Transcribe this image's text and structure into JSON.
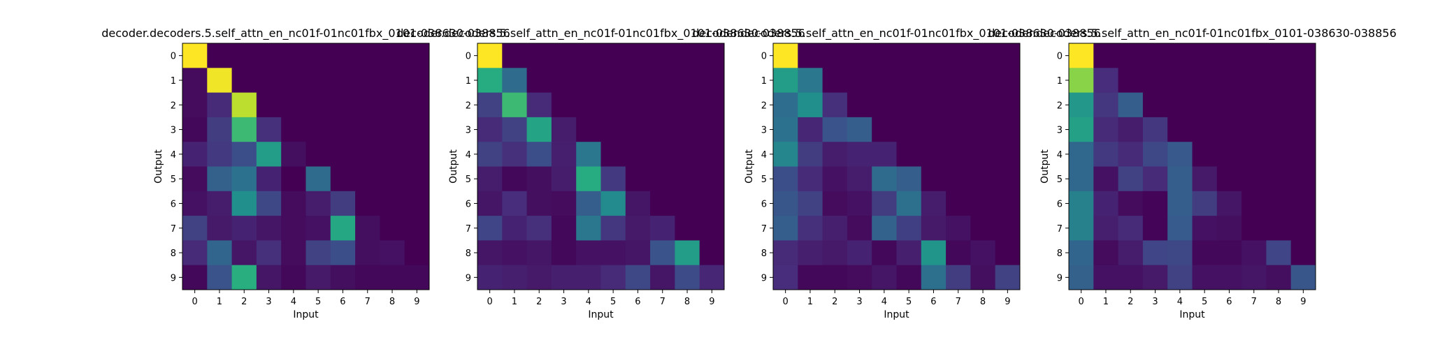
{
  "window": {},
  "colormap": "viridis",
  "chart_data": [
    {
      "type": "heatmap",
      "title": "decoder.decoders.5.self_attn_en_nc01f-01nc01fbx_0101-038630-038856",
      "xlabel": "Input",
      "ylabel": "Output",
      "x_ticks": [
        "0",
        "1",
        "2",
        "3",
        "4",
        "5",
        "6",
        "7",
        "8",
        "9"
      ],
      "y_ticks": [
        "0",
        "1",
        "2",
        "3",
        "4",
        "5",
        "6",
        "7",
        "8",
        "9"
      ],
      "clim": [
        0,
        1
      ],
      "values": [
        [
          1.0,
          0.0,
          0.0,
          0.0,
          0.0,
          0.0,
          0.0,
          0.0,
          0.0,
          0.0
        ],
        [
          0.03,
          0.98,
          0.0,
          0.0,
          0.0,
          0.0,
          0.0,
          0.0,
          0.0,
          0.0
        ],
        [
          0.03,
          0.12,
          0.9,
          0.0,
          0.0,
          0.0,
          0.0,
          0.0,
          0.0,
          0.0
        ],
        [
          0.02,
          0.18,
          0.68,
          0.14,
          0.0,
          0.0,
          0.0,
          0.0,
          0.0,
          0.0
        ],
        [
          0.1,
          0.17,
          0.24,
          0.55,
          0.04,
          0.0,
          0.0,
          0.0,
          0.0,
          0.0
        ],
        [
          0.03,
          0.31,
          0.38,
          0.1,
          0.0,
          0.35,
          0.0,
          0.0,
          0.0,
          0.0
        ],
        [
          0.05,
          0.08,
          0.5,
          0.22,
          0.03,
          0.08,
          0.18,
          0.0,
          0.0,
          0.0
        ],
        [
          0.2,
          0.07,
          0.1,
          0.06,
          0.03,
          0.05,
          0.6,
          0.04,
          0.0,
          0.0
        ],
        [
          0.12,
          0.33,
          0.06,
          0.14,
          0.03,
          0.2,
          0.24,
          0.04,
          0.05,
          0.0
        ],
        [
          0.02,
          0.26,
          0.63,
          0.06,
          0.02,
          0.07,
          0.04,
          0.02,
          0.02,
          0.02
        ]
      ]
    },
    {
      "type": "heatmap",
      "title": "decoder.decoders.5.self_attn_en_nc01f-01nc01fbx_0101-038630-038856",
      "xlabel": "Input",
      "ylabel": "Output",
      "x_ticks": [
        "0",
        "1",
        "2",
        "3",
        "4",
        "5",
        "6",
        "7",
        "8",
        "9"
      ],
      "y_ticks": [
        "0",
        "1",
        "2",
        "3",
        "4",
        "5",
        "6",
        "7",
        "8",
        "9"
      ],
      "clim": [
        0,
        1
      ],
      "values": [
        [
          1.0,
          0.0,
          0.0,
          0.0,
          0.0,
          0.0,
          0.0,
          0.0,
          0.0,
          0.0
        ],
        [
          0.62,
          0.35,
          0.0,
          0.0,
          0.0,
          0.0,
          0.0,
          0.0,
          0.0,
          0.0
        ],
        [
          0.2,
          0.68,
          0.12,
          0.0,
          0.0,
          0.0,
          0.0,
          0.0,
          0.0,
          0.0
        ],
        [
          0.12,
          0.2,
          0.58,
          0.08,
          0.0,
          0.0,
          0.0,
          0.0,
          0.0,
          0.0
        ],
        [
          0.2,
          0.14,
          0.24,
          0.09,
          0.4,
          0.0,
          0.0,
          0.0,
          0.0,
          0.0
        ],
        [
          0.08,
          0.02,
          0.04,
          0.08,
          0.62,
          0.17,
          0.0,
          0.0,
          0.0,
          0.0
        ],
        [
          0.06,
          0.13,
          0.04,
          0.03,
          0.3,
          0.48,
          0.06,
          0.0,
          0.0,
          0.0
        ],
        [
          0.21,
          0.1,
          0.14,
          0.02,
          0.4,
          0.16,
          0.07,
          0.1,
          0.0,
          0.0
        ],
        [
          0.06,
          0.05,
          0.06,
          0.02,
          0.05,
          0.05,
          0.06,
          0.26,
          0.55,
          0.0
        ],
        [
          0.1,
          0.09,
          0.07,
          0.09,
          0.09,
          0.12,
          0.22,
          0.06,
          0.23,
          0.11
        ]
      ]
    },
    {
      "type": "heatmap",
      "title": "decoder.decoders.5.self_attn_en_nc01f-01nc01fbx_0101-038630-038856",
      "xlabel": "Input",
      "ylabel": "Output",
      "x_ticks": [
        "0",
        "1",
        "2",
        "3",
        "4",
        "5",
        "6",
        "7",
        "8",
        "9"
      ],
      "y_ticks": [
        "0",
        "1",
        "2",
        "3",
        "4",
        "5",
        "6",
        "7",
        "8",
        "9"
      ],
      "clim": [
        0,
        1
      ],
      "values": [
        [
          1.0,
          0.0,
          0.0,
          0.0,
          0.0,
          0.0,
          0.0,
          0.0,
          0.0,
          0.0
        ],
        [
          0.55,
          0.4,
          0.0,
          0.0,
          0.0,
          0.0,
          0.0,
          0.0,
          0.0,
          0.0
        ],
        [
          0.36,
          0.5,
          0.14,
          0.0,
          0.0,
          0.0,
          0.0,
          0.0,
          0.0,
          0.0
        ],
        [
          0.38,
          0.11,
          0.26,
          0.3,
          0.0,
          0.0,
          0.0,
          0.0,
          0.0,
          0.0
        ],
        [
          0.46,
          0.18,
          0.08,
          0.1,
          0.1,
          0.0,
          0.0,
          0.0,
          0.0,
          0.0
        ],
        [
          0.24,
          0.12,
          0.05,
          0.08,
          0.35,
          0.3,
          0.0,
          0.0,
          0.0,
          0.0
        ],
        [
          0.27,
          0.2,
          0.03,
          0.05,
          0.18,
          0.37,
          0.08,
          0.0,
          0.0,
          0.0
        ],
        [
          0.3,
          0.14,
          0.09,
          0.03,
          0.32,
          0.19,
          0.07,
          0.05,
          0.0,
          0.0
        ],
        [
          0.12,
          0.09,
          0.07,
          0.1,
          0.02,
          0.09,
          0.52,
          0.02,
          0.05,
          0.0
        ],
        [
          0.13,
          0.02,
          0.02,
          0.03,
          0.06,
          0.02,
          0.37,
          0.18,
          0.04,
          0.2
        ]
      ]
    },
    {
      "type": "heatmap",
      "title": "decoder.decoders.5.self_attn_en_nc01f-01nc01fbx_0101-038630-038856",
      "xlabel": "Input",
      "ylabel": "Output",
      "x_ticks": [
        "0",
        "1",
        "2",
        "3",
        "4",
        "5",
        "6",
        "7",
        "8",
        "9"
      ],
      "y_ticks": [
        "0",
        "1",
        "2",
        "3",
        "4",
        "5",
        "6",
        "7",
        "8",
        "9"
      ],
      "clim": [
        0,
        1
      ],
      "values": [
        [
          1.0,
          0.0,
          0.0,
          0.0,
          0.0,
          0.0,
          0.0,
          0.0,
          0.0,
          0.0
        ],
        [
          0.82,
          0.13,
          0.0,
          0.0,
          0.0,
          0.0,
          0.0,
          0.0,
          0.0,
          0.0
        ],
        [
          0.53,
          0.16,
          0.3,
          0.0,
          0.0,
          0.0,
          0.0,
          0.0,
          0.0,
          0.0
        ],
        [
          0.57,
          0.12,
          0.08,
          0.16,
          0.0,
          0.0,
          0.0,
          0.0,
          0.0,
          0.0
        ],
        [
          0.34,
          0.17,
          0.12,
          0.22,
          0.28,
          0.0,
          0.0,
          0.0,
          0.0,
          0.0
        ],
        [
          0.34,
          0.05,
          0.2,
          0.12,
          0.3,
          0.07,
          0.0,
          0.0,
          0.0,
          0.0
        ],
        [
          0.44,
          0.1,
          0.03,
          0.01,
          0.3,
          0.18,
          0.06,
          0.0,
          0.0,
          0.0
        ],
        [
          0.44,
          0.09,
          0.12,
          0.01,
          0.29,
          0.05,
          0.04,
          0.0,
          0.0,
          0.0
        ],
        [
          0.33,
          0.03,
          0.08,
          0.21,
          0.22,
          0.02,
          0.02,
          0.05,
          0.21,
          0.0
        ],
        [
          0.31,
          0.05,
          0.05,
          0.07,
          0.2,
          0.05,
          0.05,
          0.06,
          0.04,
          0.27
        ]
      ]
    }
  ]
}
